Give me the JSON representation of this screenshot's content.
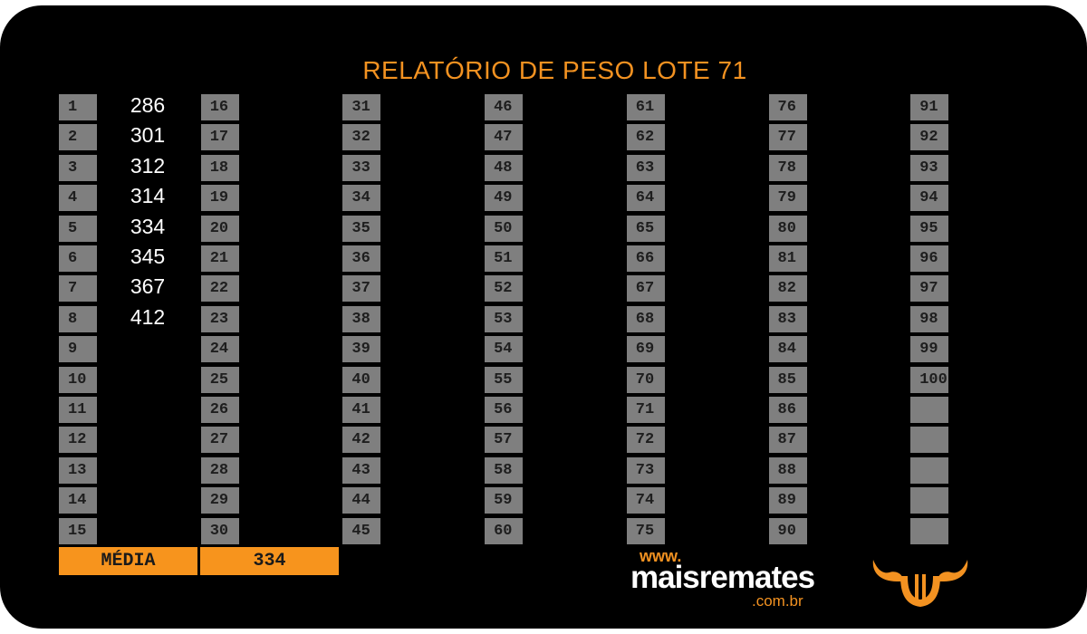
{
  "title": "RELATÓRIO DE PESO LOTE 71",
  "grid": {
    "columns": [
      [
        1,
        2,
        3,
        4,
        5,
        6,
        7,
        8,
        9,
        10,
        11,
        12,
        13,
        14,
        15
      ],
      [
        16,
        17,
        18,
        19,
        20,
        21,
        22,
        23,
        24,
        25,
        26,
        27,
        28,
        29,
        30
      ],
      [
        31,
        32,
        33,
        34,
        35,
        36,
        37,
        38,
        39,
        40,
        41,
        42,
        43,
        44,
        45
      ],
      [
        46,
        47,
        48,
        49,
        50,
        51,
        52,
        53,
        54,
        55,
        56,
        57,
        58,
        59,
        60
      ],
      [
        61,
        62,
        63,
        64,
        65,
        66,
        67,
        68,
        69,
        70,
        71,
        72,
        73,
        74,
        75
      ],
      [
        76,
        77,
        78,
        79,
        80,
        81,
        82,
        83,
        84,
        85,
        86,
        87,
        88,
        89,
        90
      ],
      [
        91,
        92,
        93,
        94,
        95,
        96,
        97,
        98,
        99,
        100
      ]
    ],
    "weights": [
      286,
      301,
      312,
      314,
      334,
      345,
      367,
      412
    ]
  },
  "summary": {
    "label": "MÉDIA",
    "value": 334
  },
  "logo": {
    "prefix": "www.",
    "name": "maisremates",
    "suffix": ".com.br"
  }
}
